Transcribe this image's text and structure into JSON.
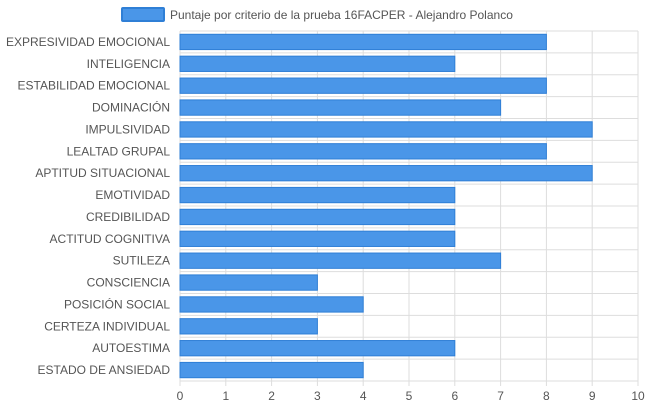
{
  "chart_data": {
    "type": "bar",
    "orientation": "horizontal",
    "legend": {
      "label": "Puntaje por criterio de la prueba 16FACPER - Alejandro Polanco",
      "position": "top"
    },
    "categories": [
      "EXPRESIVIDAD EMOCIONAL",
      "INTELIGENCIA",
      "ESTABILIDAD EMOCIONAL",
      "DOMINACIÓN",
      "IMPULSIVIDAD",
      "LEALTAD GRUPAL",
      "APTITUD SITUACIONAL",
      "EMOTIVIDAD",
      "CREDIBILIDAD",
      "ACTITUD COGNITIVA",
      "SUTILEZA",
      "CONSCIENCIA",
      "POSICIÓN SOCIAL",
      "CERTEZA INDIVIDUAL",
      "AUTOESTIMA",
      "ESTADO DE ANSIEDAD"
    ],
    "series": [
      {
        "name": "Puntaje por criterio de la prueba 16FACPER - Alejandro Polanco",
        "values": [
          8,
          6,
          8,
          7,
          9,
          8,
          9,
          6,
          6,
          6,
          7,
          3,
          4,
          3,
          6,
          4
        ],
        "color": "#4a96e8"
      }
    ],
    "xlim": [
      0,
      10
    ],
    "ticks": [
      "0",
      "1",
      "2",
      "3",
      "4",
      "5",
      "6",
      "7",
      "8",
      "9",
      "10"
    ],
    "grid": true,
    "colors": {
      "bar_fill": "#4a96e8",
      "bar_stroke": "#2f7fd6",
      "grid": "#dddddd"
    }
  }
}
